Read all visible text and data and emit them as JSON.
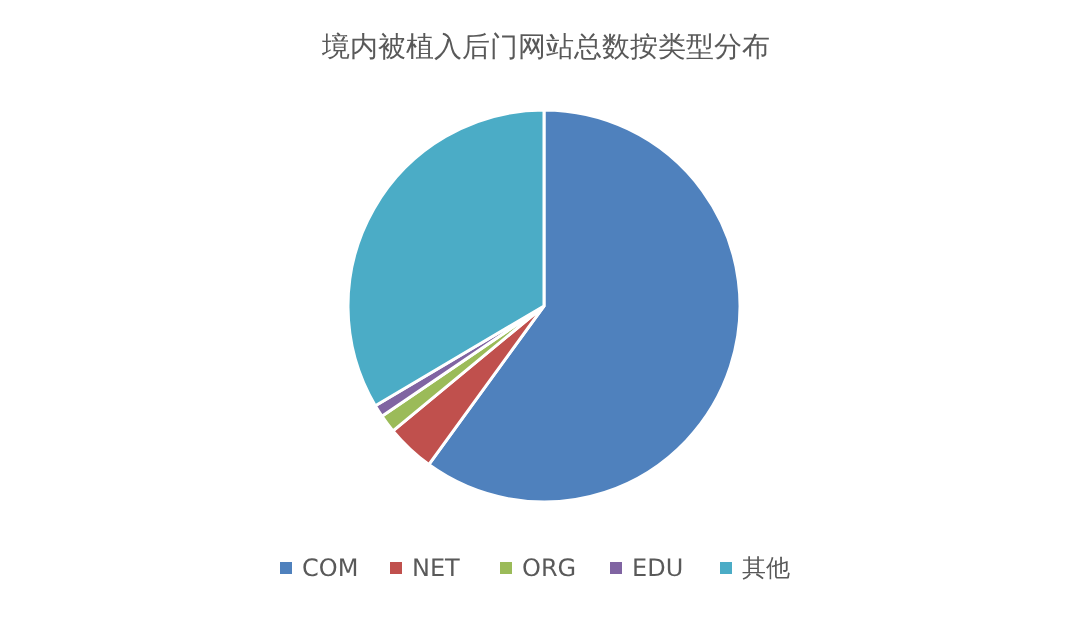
{
  "chart_data": {
    "type": "pie",
    "title": "境内被植入后门网站总数按类型分布",
    "categories": [
      "COM",
      "NET",
      "ORG",
      "EDU",
      "其他"
    ],
    "values": [
      60,
      4,
      1.5,
      1,
      33.5
    ],
    "colors": [
      "#4f81bd",
      "#c0504d",
      "#9bbb59",
      "#8064a2",
      "#4bacc6"
    ],
    "legend": "bottom"
  }
}
